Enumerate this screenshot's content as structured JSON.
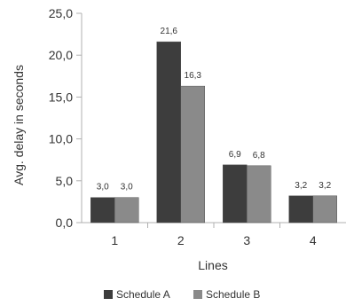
{
  "chart_data": {
    "type": "bar",
    "categories": [
      "1",
      "2",
      "3",
      "4"
    ],
    "series": [
      {
        "name": "Schedule A",
        "values": [
          3.0,
          21.6,
          6.9,
          3.2
        ],
        "labels": [
          "3,0",
          "21,6",
          "6,9",
          "3,2"
        ],
        "color": "#3d3d3d"
      },
      {
        "name": "Schedule B",
        "values": [
          3.0,
          16.3,
          6.8,
          3.2
        ],
        "labels": [
          "3,0",
          "16,3",
          "6,8",
          "3,2"
        ],
        "color": "#8a8a8a"
      }
    ],
    "xlabel": "Lines",
    "ylabel": "Avg. delay in seconds",
    "ylim": [
      0,
      25
    ],
    "yticks": [
      0,
      5,
      10,
      15,
      20,
      25
    ],
    "ytick_labels": [
      "0,0",
      "5,0",
      "10,0",
      "15,0",
      "20,0",
      "25,0"
    ],
    "grid": false,
    "legend": "bottom"
  }
}
